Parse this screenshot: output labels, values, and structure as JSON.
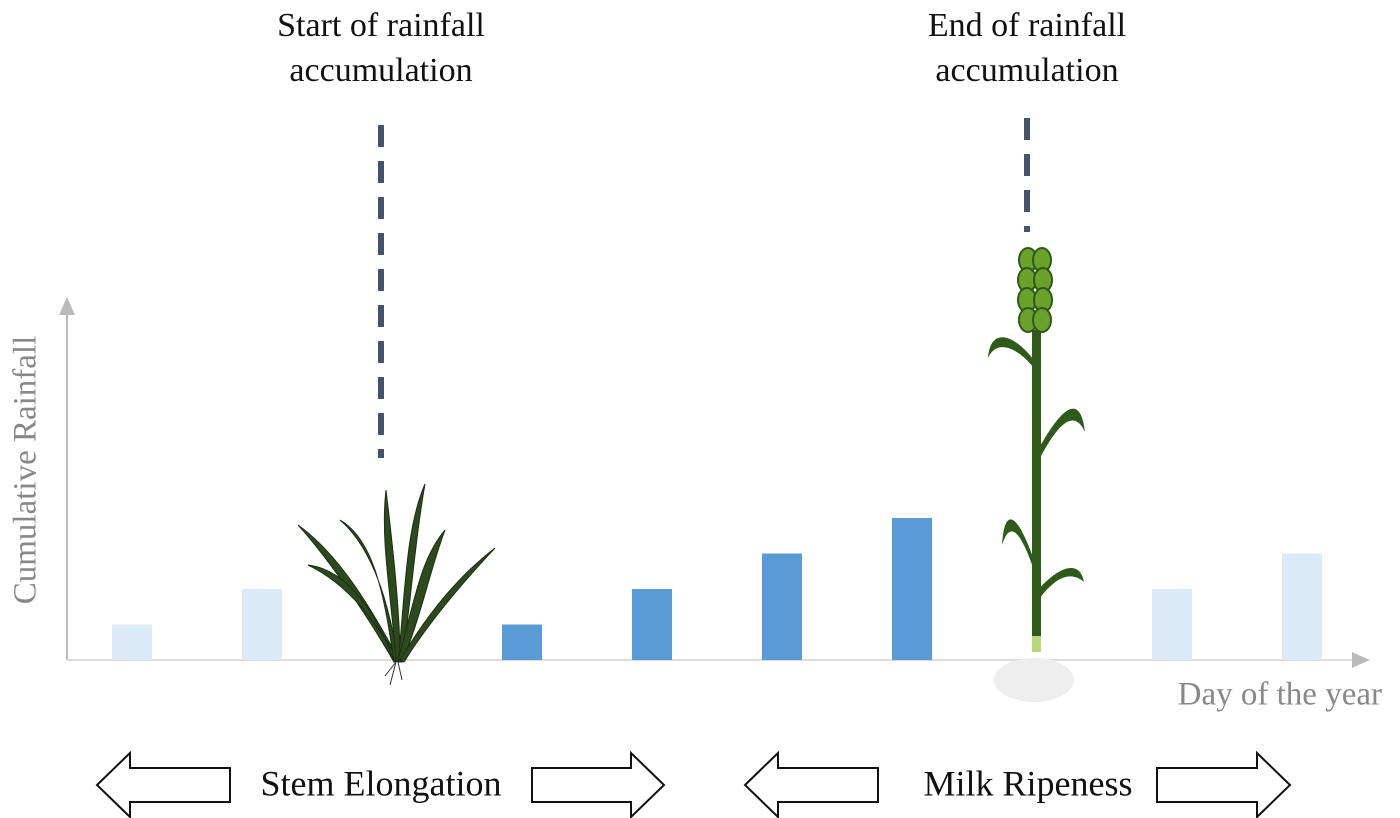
{
  "chart_data": {
    "type": "bar",
    "annotations": [
      {
        "lines": [
          "Start of rainfall",
          "accumulation"
        ]
      },
      {
        "lines": [
          "End of rainfall",
          "accumulation"
        ]
      }
    ],
    "y_label": "Cumulative Rainfall",
    "x_label": "Day of the year",
    "phases": [
      "Stem Elongation",
      "Milk Ripeness"
    ],
    "categories": [
      null,
      null,
      null,
      null,
      null,
      null,
      null,
      null,
      null,
      null
    ],
    "values": [
      1,
      2,
      null,
      1,
      2,
      3,
      4,
      null,
      2,
      3
    ],
    "colors": [
      "#dce9f6",
      "#dce9f6",
      null,
      "#5b9bd5",
      "#5b9bd5",
      "#5b9bd5",
      "#5b9bd5",
      null,
      "#dce9f6",
      "#dce9f6"
    ],
    "ylim": [
      0,
      10
    ]
  }
}
